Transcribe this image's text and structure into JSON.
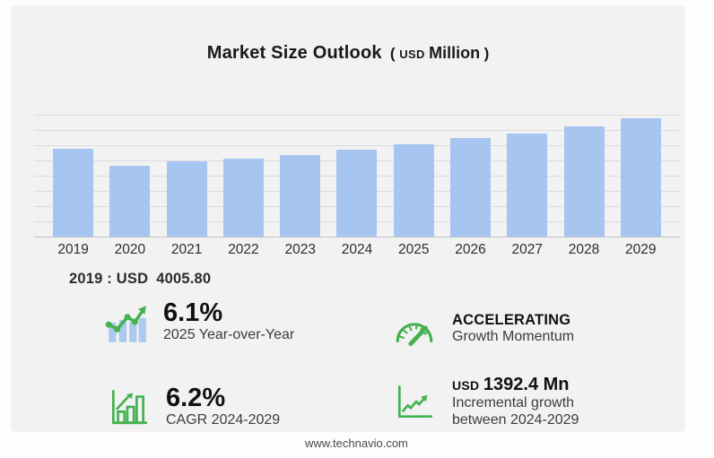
{
  "header": {
    "title": "Market Size Outlook",
    "unit_paren_open": "(",
    "unit_currency": "USD",
    "unit_name": "Million",
    "unit_paren_close": ")"
  },
  "chart_data": {
    "type": "bar",
    "title": "Market Size Outlook (USD Million)",
    "categories": [
      "2019",
      "2020",
      "2021",
      "2022",
      "2023",
      "2024",
      "2025",
      "2026",
      "2027",
      "2028",
      "2029"
    ],
    "values": [
      4005.8,
      3250,
      3450,
      3540,
      3740,
      3968.6,
      4210.7,
      4480,
      4700,
      5020,
      5361
    ],
    "xlabel": "",
    "ylabel": "",
    "ylim": [
      0,
      5500
    ],
    "grid": true,
    "legend": false,
    "bar_color": "#a7c5f1"
  },
  "annotation": {
    "prefix": "2019 : USD",
    "value": "4005.80"
  },
  "stats": {
    "yoy": {
      "icon": "trend-bars-icon",
      "value": "6.1%",
      "label": "2025 Year-over-Year"
    },
    "momentum": {
      "icon": "gauge-icon",
      "value": "ACCELERATING",
      "label": "Growth Momentum"
    },
    "cagr": {
      "icon": "bar-growth-icon",
      "value": "6.2%",
      "label": "CAGR 2024-2029"
    },
    "incremental": {
      "icon": "line-growth-icon",
      "currency": "USD",
      "value": "1392.4 Mn",
      "label": "Incremental growth between 2024-2029"
    }
  },
  "footer": {
    "website": "www.technavio.com"
  },
  "colors": {
    "panel_background": "#f2f2f3",
    "bar": "#a7c5f1",
    "gridline": "#dcdcdc",
    "icon_green": "#44b24e",
    "icon_blue": "#adc9ef",
    "text_dark": "#111111",
    "text_mid": "#3c3c3c"
  }
}
